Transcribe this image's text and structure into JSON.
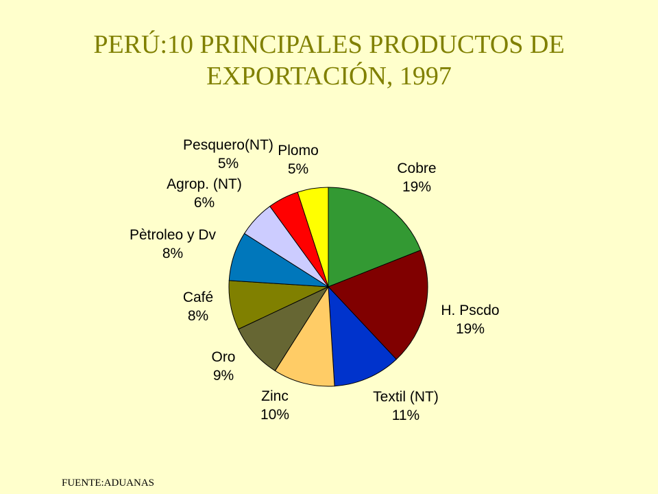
{
  "slide": {
    "title_line1": "PERÚ:10 PRINCIPALES PRODUCTOS DE",
    "title_line2": "EXPORTACIÓN, 1997",
    "source": "FUENTE:ADUANAS",
    "background_color": "#FFFFCC",
    "title_color": "#808000"
  },
  "chart_data": {
    "type": "pie",
    "title": "PERÚ:10 PRINCIPALES PRODUCTOS DE EXPORTACIÓN, 1997",
    "start": "12 o'clock",
    "direction": "clockwise",
    "legend": "none",
    "slices": [
      {
        "label": "Cobre",
        "value": 19,
        "value_label": "19%",
        "color": "#339933"
      },
      {
        "label": "H. Pscdo",
        "value": 19,
        "value_label": "19%",
        "color": "#800000"
      },
      {
        "label": "Textil (NT)",
        "value": 11,
        "value_label": "11%",
        "color": "#0033CC"
      },
      {
        "label": "Zinc",
        "value": 10,
        "value_label": "10%",
        "color": "#FFCC66"
      },
      {
        "label": "Oro",
        "value": 9,
        "value_label": "9%",
        "color": "#666633"
      },
      {
        "label": "Café",
        "value": 8,
        "value_label": "8%",
        "color": "#808000"
      },
      {
        "label": "Pètroleo y Dv",
        "value": 8,
        "value_label": "8%",
        "color": "#0077BB"
      },
      {
        "label": "Agrop. (NT)",
        "value": 6,
        "value_label": "6%",
        "color": "#CCCCFF"
      },
      {
        "label": "Pesquero(NT)",
        "value": 5,
        "value_label": "5%",
        "color": "#FF0000"
      },
      {
        "label": "Plomo",
        "value": 5,
        "value_label": "5%",
        "color": "#FFFF00"
      }
    ]
  }
}
